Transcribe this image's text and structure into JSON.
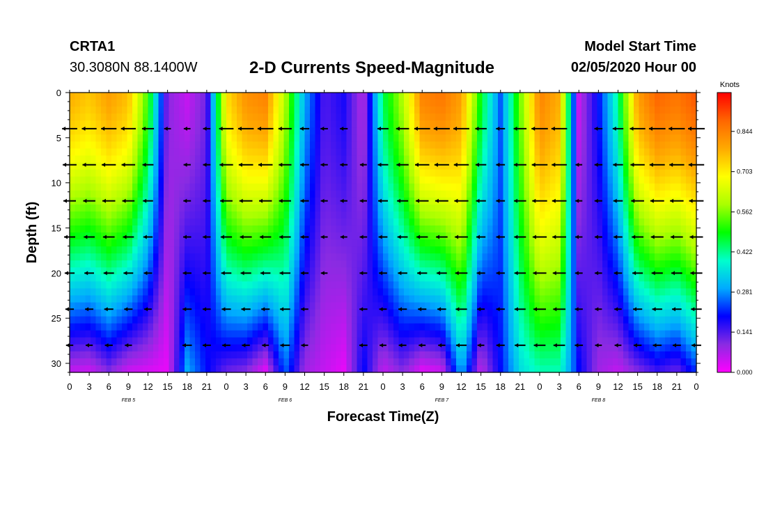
{
  "header": {
    "station": "CRTA1",
    "coords": "30.3080N 88.1400W",
    "title": "2-D Currents Speed-Magnitude",
    "model_start_label": "Model Start Time",
    "model_start_value": "02/05/2020 Hour 00"
  },
  "chart_data": {
    "type": "heatmap",
    "title": "2-D Currents Speed-Magnitude",
    "xlabel": "Forecast Time(Z)",
    "ylabel": "Depth (ft)",
    "x_ticks": [
      "0",
      "3",
      "6",
      "9",
      "12",
      "15",
      "18",
      "21",
      "0",
      "3",
      "6",
      "9",
      "12",
      "15",
      "18",
      "21",
      "0",
      "3",
      "6",
      "9",
      "12",
      "15",
      "18",
      "21",
      "0",
      "3",
      "6",
      "9",
      "12",
      "15",
      "18",
      "21",
      "0"
    ],
    "day_labels": [
      "FEB 5",
      "FEB 6",
      "FEB 7",
      "FEB 8"
    ],
    "y_ticks": [
      "0",
      "5",
      "10",
      "15",
      "20",
      "25",
      "30"
    ],
    "x_range_hours": [
      0,
      96
    ],
    "y_range_ft": [
      0,
      31
    ],
    "y_inverted": true,
    "colorbar": {
      "title": "Knots",
      "ticks": [
        "0.000",
        "0.141",
        "0.281",
        "0.422",
        "0.562",
        "0.703",
        "0.844"
      ],
      "range": [
        0,
        0.98
      ],
      "colors": [
        "#ff00ff",
        "#8a2be2",
        "#0000ff",
        "#00aaff",
        "#00ffcc",
        "#00ff00",
        "#aaff00",
        "#ffff00",
        "#ffaa00",
        "#ff6600",
        "#ff0000"
      ]
    },
    "depths_ft": [
      4,
      8,
      12,
      16,
      20,
      24,
      28
    ],
    "speed_profile": {
      "note_hours": [
        0,
        3,
        6,
        9,
        12,
        15,
        18,
        21,
        24,
        27,
        30,
        33,
        36,
        39,
        42,
        45,
        48,
        51,
        54,
        57,
        60,
        63,
        66,
        69,
        72,
        75,
        78,
        81,
        84,
        87,
        90,
        93,
        96
      ],
      "surface_knots": [
        0.78,
        0.75,
        0.8,
        0.76,
        0.52,
        0.1,
        0.05,
        0.12,
        0.72,
        0.82,
        0.84,
        0.6,
        0.3,
        0.14,
        0.18,
        0.06,
        0.45,
        0.6,
        0.84,
        0.86,
        0.8,
        0.48,
        0.25,
        0.55,
        0.84,
        0.78,
        0.05,
        0.2,
        0.42,
        0.8,
        0.88,
        0.86,
        0.9
      ],
      "bottom_knots": [
        0.05,
        0.04,
        0.1,
        0.04,
        0.03,
        0.02,
        0.3,
        0.2,
        0.12,
        0.1,
        0.02,
        0.25,
        0.08,
        0.05,
        0.02,
        0.2,
        0.05,
        0.1,
        0.02,
        0.04,
        0.3,
        0.05,
        0.2,
        0.35,
        0.4,
        0.4,
        0.2,
        0.08,
        0.05,
        0.1,
        0.15,
        0.12,
        0.22
      ]
    },
    "grid": false
  }
}
